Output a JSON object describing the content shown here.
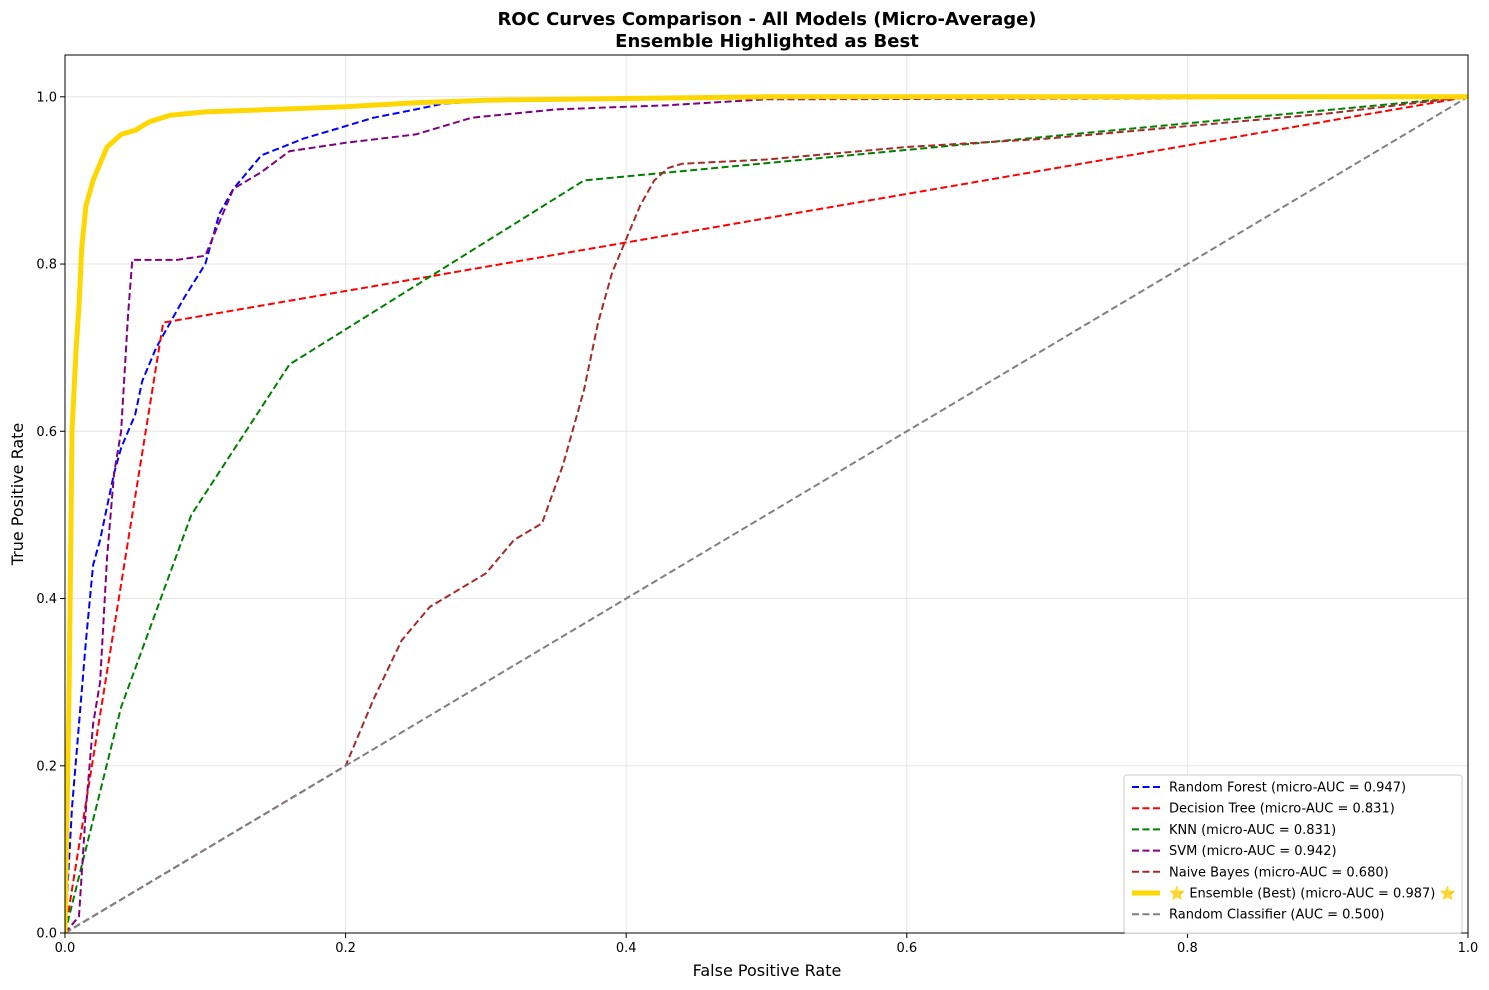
{
  "chart_data": {
    "type": "line",
    "title": "ROC Curves Comparison - All Models (Micro-Average)",
    "subtitle": "Ensemble Highlighted as Best",
    "xlabel": "False Positive Rate",
    "ylabel": "True Positive Rate",
    "xlim": [
      0.0,
      1.0
    ],
    "ylim": [
      0.0,
      1.05
    ],
    "xticks": [
      "0.0",
      "0.2",
      "0.4",
      "0.6",
      "0.8",
      "1.0"
    ],
    "yticks": [
      "0.0",
      "0.2",
      "0.4",
      "0.6",
      "0.8",
      "1.0"
    ],
    "grid": true,
    "legend_position": "lower-right",
    "series": [
      {
        "name": "Random Forest (micro-AUC = 0.947)",
        "color": "#0000ff",
        "style": "dashed",
        "width": 2,
        "x": [
          0.0,
          0.005,
          0.01,
          0.015,
          0.02,
          0.025,
          0.03,
          0.035,
          0.04,
          0.05,
          0.055,
          0.065,
          0.075,
          0.085,
          0.1,
          0.11,
          0.12,
          0.13,
          0.14,
          0.155,
          0.17,
          0.19,
          0.22,
          0.25,
          0.27,
          0.3,
          0.35,
          0.4,
          0.45,
          0.5,
          0.6,
          0.8,
          1.0
        ],
        "y": [
          0.0,
          0.15,
          0.25,
          0.35,
          0.44,
          0.47,
          0.51,
          0.55,
          0.58,
          0.62,
          0.66,
          0.7,
          0.73,
          0.76,
          0.8,
          0.86,
          0.89,
          0.91,
          0.93,
          0.94,
          0.95,
          0.96,
          0.975,
          0.985,
          0.992,
          0.995,
          0.997,
          0.998,
          0.999,
          1.0,
          1.0,
          1.0,
          1.0
        ]
      },
      {
        "name": "Decision Tree (micro-AUC = 0.831)",
        "color": "#ff0000",
        "style": "dashed",
        "width": 2,
        "x": [
          0.0,
          0.07,
          1.0
        ],
        "y": [
          0.0,
          0.73,
          1.0
        ]
      },
      {
        "name": "KNN (micro-AUC = 0.831)",
        "color": "#008000",
        "style": "dashed",
        "width": 2,
        "x": [
          0.0,
          0.04,
          0.09,
          0.16,
          0.37,
          1.0
        ],
        "y": [
          0.0,
          0.27,
          0.5,
          0.68,
          0.9,
          1.0
        ]
      },
      {
        "name": "SVM (micro-AUC = 0.942)",
        "color": "#800080",
        "style": "dashed",
        "width": 2,
        "x": [
          0.0,
          0.01,
          0.015,
          0.02,
          0.025,
          0.03,
          0.035,
          0.04,
          0.045,
          0.048,
          0.08,
          0.1,
          0.11,
          0.12,
          0.14,
          0.16,
          0.2,
          0.25,
          0.29,
          0.35,
          0.43,
          0.5,
          0.75,
          1.0
        ],
        "y": [
          0.0,
          0.02,
          0.15,
          0.25,
          0.3,
          0.45,
          0.55,
          0.6,
          0.74,
          0.805,
          0.805,
          0.81,
          0.85,
          0.89,
          0.91,
          0.935,
          0.945,
          0.955,
          0.975,
          0.985,
          0.99,
          0.997,
          0.998,
          1.0
        ]
      },
      {
        "name": "Naive Bayes (micro-AUC = 0.680)",
        "color": "#a52a2a",
        "style": "dashed",
        "width": 2,
        "x": [
          0.0,
          0.2,
          0.22,
          0.24,
          0.26,
          0.28,
          0.3,
          0.32,
          0.34,
          0.355,
          0.37,
          0.38,
          0.39,
          0.4,
          0.41,
          0.42,
          0.43,
          0.44,
          0.5,
          0.6,
          0.7,
          0.8,
          0.9,
          1.0
        ],
        "y": [
          0.0,
          0.2,
          0.28,
          0.35,
          0.39,
          0.41,
          0.43,
          0.47,
          0.49,
          0.56,
          0.65,
          0.73,
          0.79,
          0.83,
          0.87,
          0.9,
          0.915,
          0.92,
          0.925,
          0.94,
          0.95,
          0.965,
          0.98,
          1.0
        ]
      },
      {
        "name": "⭐ Ensemble (Best) (micro-AUC = 0.987) ⭐",
        "color": "#ffd700",
        "style": "solid",
        "width": 5,
        "x": [
          0.0,
          0.003,
          0.005,
          0.008,
          0.01,
          0.012,
          0.015,
          0.02,
          0.025,
          0.03,
          0.04,
          0.05,
          0.06,
          0.075,
          0.1,
          0.15,
          0.2,
          0.25,
          0.3,
          0.4,
          0.5,
          1.0
        ],
        "y": [
          0.0,
          0.3,
          0.6,
          0.7,
          0.75,
          0.82,
          0.87,
          0.9,
          0.92,
          0.94,
          0.955,
          0.96,
          0.97,
          0.978,
          0.982,
          0.985,
          0.988,
          0.993,
          0.996,
          0.998,
          1.0,
          1.0
        ]
      },
      {
        "name": "Random Classifier (AUC = 0.500)",
        "color": "#808080",
        "style": "dashed",
        "width": 2,
        "x": [
          0.0,
          1.0
        ],
        "y": [
          0.0,
          1.0
        ]
      }
    ]
  }
}
